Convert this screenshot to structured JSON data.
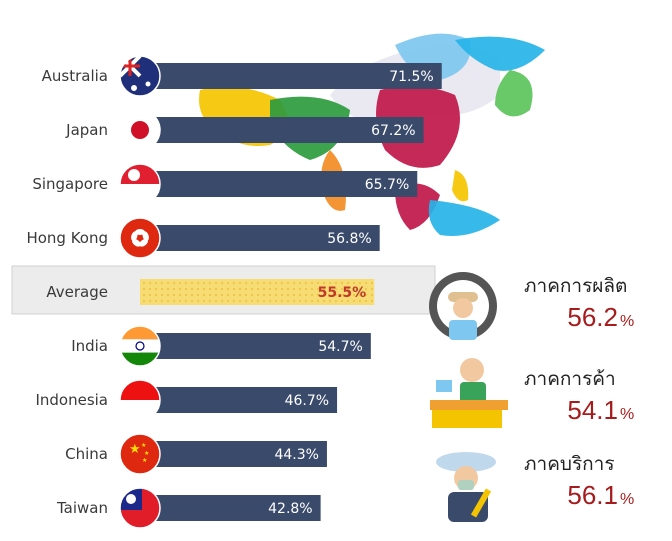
{
  "chart_data": {
    "type": "bar",
    "orientation": "horizontal",
    "categories": [
      "Australia",
      "Japan",
      "Singapore",
      "Hong Kong",
      "Average",
      "India",
      "Indonesia",
      "China",
      "Taiwan"
    ],
    "values": [
      71.5,
      67.2,
      65.7,
      56.8,
      55.5,
      54.7,
      46.7,
      44.3,
      42.8
    ],
    "value_labels": [
      "71.5%",
      "67.2%",
      "65.7%",
      "56.8%",
      "55.5%",
      "54.7%",
      "46.7%",
      "44.3%",
      "42.8%"
    ],
    "highlight_category": "Average",
    "flag_icons": [
      "australia-flag-icon",
      "japan-flag-icon",
      "singapore-flag-icon",
      "hong-kong-flag-icon",
      "",
      "india-flag-icon",
      "indonesia-flag-icon",
      "china-flag-icon",
      "taiwan-flag-icon"
    ],
    "colors": {
      "bar": "#3a4a6b",
      "average_bar": "#f7dc74",
      "average_text": "#c0392b",
      "average_band": "#ececec"
    }
  },
  "sectors": [
    {
      "name": "ภาคการผลิต",
      "value": "56.2",
      "unit": "%",
      "icon": "factory-worker-icon"
    },
    {
      "name": "ภาคการค้า",
      "value": "54.1",
      "unit": "%",
      "icon": "cashier-icon"
    },
    {
      "name": "ภาคบริการ",
      "value": "56.1",
      "unit": "%",
      "icon": "service-worker-icon"
    }
  ],
  "sector_value_color": "#a61c1c",
  "background_icon": "asia-map-icon"
}
